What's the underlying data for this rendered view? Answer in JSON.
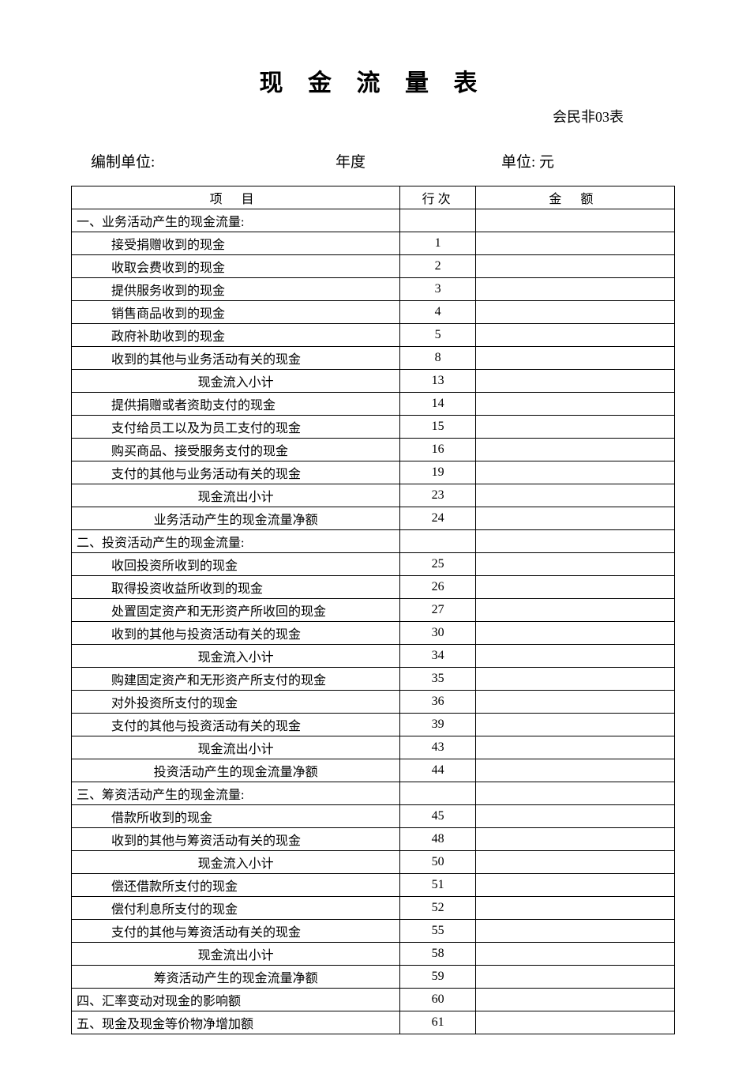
{
  "title": "现 金 流 量 表",
  "form_id": "会民非03表",
  "meta": {
    "org_label": "编制单位:",
    "year_label": "年度",
    "unit_label": "单位: 元"
  },
  "headers": {
    "item": "项 目",
    "line": "行次",
    "amount": "金 额"
  },
  "rows": [
    {
      "item": "一、业务活动产生的现金流量:",
      "line": "",
      "amount": "",
      "style": "section"
    },
    {
      "item": "接受捐赠收到的现金",
      "line": "1",
      "amount": "",
      "style": "indent"
    },
    {
      "item": "收取会费收到的现金",
      "line": "2",
      "amount": "",
      "style": "indent"
    },
    {
      "item": "提供服务收到的现金",
      "line": "3",
      "amount": "",
      "style": "indent"
    },
    {
      "item": "销售商品收到的现金",
      "line": "4",
      "amount": "",
      "style": "indent"
    },
    {
      "item": "政府补助收到的现金",
      "line": "5",
      "amount": "",
      "style": "indent"
    },
    {
      "item": "收到的其他与业务活动有关的现金",
      "line": "8",
      "amount": "",
      "style": "indent"
    },
    {
      "item": "现金流入小计",
      "line": "13",
      "amount": "",
      "style": "subtotal"
    },
    {
      "item": "提供捐赠或者资助支付的现金",
      "line": "14",
      "amount": "",
      "style": "indent"
    },
    {
      "item": "支付给员工以及为员工支付的现金",
      "line": "15",
      "amount": "",
      "style": "indent"
    },
    {
      "item": "购买商品、接受服务支付的现金",
      "line": "16",
      "amount": "",
      "style": "indent"
    },
    {
      "item": "支付的其他与业务活动有关的现金",
      "line": "19",
      "amount": "",
      "style": "indent"
    },
    {
      "item": "现金流出小计",
      "line": "23",
      "amount": "",
      "style": "subtotal"
    },
    {
      "item": "业务活动产生的现金流量净额",
      "line": "24",
      "amount": "",
      "style": "subtotal"
    },
    {
      "item": "二、投资活动产生的现金流量:",
      "line": "",
      "amount": "",
      "style": "section"
    },
    {
      "item": "收回投资所收到的现金",
      "line": "25",
      "amount": "",
      "style": "indent"
    },
    {
      "item": "取得投资收益所收到的现金",
      "line": "26",
      "amount": "",
      "style": "indent"
    },
    {
      "item": "处置固定资产和无形资产所收回的现金",
      "line": "27",
      "amount": "",
      "style": "indent"
    },
    {
      "item": "收到的其他与投资活动有关的现金",
      "line": "30",
      "amount": "",
      "style": "indent"
    },
    {
      "item": "现金流入小计",
      "line": "34",
      "amount": "",
      "style": "subtotal"
    },
    {
      "item": "购建固定资产和无形资产所支付的现金",
      "line": "35",
      "amount": "",
      "style": "indent"
    },
    {
      "item": "对外投资所支付的现金",
      "line": "36",
      "amount": "",
      "style": "indent"
    },
    {
      "item": "支付的其他与投资活动有关的现金",
      "line": "39",
      "amount": "",
      "style": "indent"
    },
    {
      "item": "现金流出小计",
      "line": "43",
      "amount": "",
      "style": "subtotal"
    },
    {
      "item": "投资活动产生的现金流量净额",
      "line": "44",
      "amount": "",
      "style": "subtotal"
    },
    {
      "item": "三、筹资活动产生的现金流量:",
      "line": "",
      "amount": "",
      "style": "section"
    },
    {
      "item": "借款所收到的现金",
      "line": "45",
      "amount": "",
      "style": "indent"
    },
    {
      "item": "收到的其他与筹资活动有关的现金",
      "line": "48",
      "amount": "",
      "style": "indent"
    },
    {
      "item": "现金流入小计",
      "line": "50",
      "amount": "",
      "style": "subtotal"
    },
    {
      "item": "偿还借款所支付的现金",
      "line": "51",
      "amount": "",
      "style": "indent"
    },
    {
      "item": "偿付利息所支付的现金",
      "line": "52",
      "amount": "",
      "style": "indent"
    },
    {
      "item": "支付的其他与筹资活动有关的现金",
      "line": "55",
      "amount": "",
      "style": "indent"
    },
    {
      "item": "现金流出小计",
      "line": "58",
      "amount": "",
      "style": "subtotal"
    },
    {
      "item": "筹资活动产生的现金流量净额",
      "line": "59",
      "amount": "",
      "style": "subtotal"
    },
    {
      "item": "四、汇率变动对现金的影响额",
      "line": "60",
      "amount": "",
      "style": "section"
    },
    {
      "item": "五、现金及现金等价物净增加额",
      "line": "61",
      "amount": "",
      "style": "section"
    }
  ]
}
